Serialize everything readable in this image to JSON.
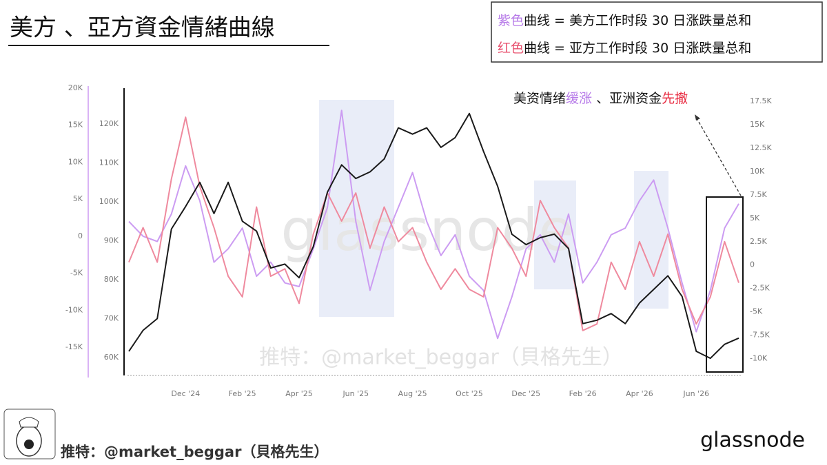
{
  "title": "美方 、亞方資金情緒曲線",
  "legend_notes": [
    {
      "color_word": "紫色",
      "color": "#b77be8",
      "text": "曲线 = 美方工作时段 30 日涨跌量总和"
    },
    {
      "color_word": "红色",
      "color": "#e8506e",
      "text": "曲线 = 亚方工作时段 30 日涨跌量总和"
    }
  ],
  "annotation": [
    {
      "text": "美资情绪",
      "color": "#111"
    },
    {
      "text": "缓涨",
      "color": "#b77be8"
    },
    {
      "text": " 、亚洲资金",
      "color": "#111"
    },
    {
      "text": "先撤",
      "color": "#e8283e"
    }
  ],
  "watermark": "glassnode",
  "watermark_credit": "推特：@market_beggar（貝格先生）",
  "footer_credit": "推特：@market_beggar（貝格先生）",
  "logo": "glassnode",
  "chart_data": {
    "type": "line",
    "categories": [
      null,
      null,
      null,
      null,
      "Dec '24",
      null,
      null,
      null,
      "Feb '25",
      null,
      null,
      null,
      "Apr '25",
      null,
      null,
      null,
      "Jun '25",
      null,
      null,
      null,
      "Aug '25",
      null,
      null,
      null,
      "Oct '25",
      null,
      null,
      null,
      "Dec '25",
      null,
      null,
      null,
      "Feb '26",
      null,
      null,
      null,
      "Apr '26",
      null,
      null,
      null,
      "Jun '26",
      null,
      null,
      null
    ],
    "ylim": [
      -18800,
      20000
    ],
    "yticks": [
      {
        "value": -15000,
        "label": "-15K"
      },
      {
        "value": -10000,
        "label": "-10K"
      },
      {
        "value": -5000,
        "label": "-5K"
      },
      0,
      {
        "value": 5000,
        "label": "5K"
      },
      {
        "value": 10000,
        "label": "10K"
      },
      {
        "value": 15000,
        "label": "15K"
      },
      {
        "value": 20000,
        "label": "20K"
      }
    ],
    "y2lim": [
      -11800,
      18900
    ],
    "y2ticks": [
      {
        "value": -10000,
        "label": "-10K"
      },
      {
        "value": -7500,
        "label": "-7.5K"
      },
      {
        "value": -5000,
        "label": "-5K"
      },
      {
        "value": -2500,
        "label": "-2.5K"
      },
      0,
      {
        "value": 2500,
        "label": "2.5K"
      },
      {
        "value": 5000,
        "label": "5K"
      },
      {
        "value": 7500,
        "label": "7.5K"
      },
      {
        "value": 10000,
        "label": "10K"
      },
      {
        "value": 12500,
        "label": "12.5K"
      },
      {
        "value": 15000,
        "label": "15K"
      },
      {
        "value": 17500,
        "label": "17.5K"
      }
    ],
    "y3lim": [
      55400,
      129200
    ],
    "y3ticks": [
      {
        "value": 60000,
        "label": "60K"
      },
      {
        "value": 70000,
        "label": "70K"
      },
      {
        "value": 80000,
        "label": "80K"
      },
      {
        "value": 90000,
        "label": "90K"
      },
      {
        "value": 100000,
        "label": "100K"
      },
      {
        "value": 110000,
        "label": "110K"
      },
      {
        "value": 120000,
        "label": "120K"
      }
    ],
    "series": [
      {
        "color": "#cc9cf2",
        "axis": "y",
        "values": [
          2000,
          0,
          -700,
          3000,
          9500,
          4800,
          -3500,
          -1700,
          1100,
          -5400,
          -3500,
          -6300,
          -6800,
          -1700,
          3900,
          17000,
          2000,
          -7300,
          -700,
          3900,
          8600,
          2000,
          -2600,
          200,
          -5400,
          -7300,
          -13800,
          -8200,
          -1700,
          200,
          -3500,
          3000,
          -6300,
          -3500,
          200,
          1100,
          4800,
          7600,
          1100,
          -6300,
          -12900,
          -7300,
          1100,
          4400
        ]
      },
      {
        "color": "#ef8a9e",
        "axis": "y2",
        "values": [
          300,
          4000,
          300,
          9200,
          15800,
          8400,
          4000,
          -1200,
          -3400,
          6200,
          -1200,
          -400,
          -4100,
          3300,
          7700,
          4700,
          7700,
          1800,
          6200,
          2500,
          4000,
          300,
          -2600,
          -400,
          -2600,
          -3400,
          4000,
          1800,
          -1200,
          6900,
          4000,
          1800,
          -7000,
          -6300,
          300,
          -2600,
          2500,
          -1200,
          3300,
          -2600,
          -6300,
          -3400,
          2500,
          -1900
        ]
      },
      {
        "color": "#1a1a1a",
        "axis": "y3",
        "values": [
          61600,
          67000,
          70000,
          93000,
          98800,
          105000,
          97000,
          105000,
          95000,
          92500,
          83000,
          84000,
          80500,
          88500,
          102500,
          109500,
          106000,
          107700,
          111000,
          119000,
          117400,
          119000,
          114000,
          116500,
          122700,
          113000,
          104000,
          91700,
          89000,
          90800,
          91700,
          88000,
          68700,
          69600,
          71300,
          68700,
          74000,
          77500,
          81000,
          75700,
          61600,
          59800,
          63400,
          65000
        ]
      }
    ]
  }
}
